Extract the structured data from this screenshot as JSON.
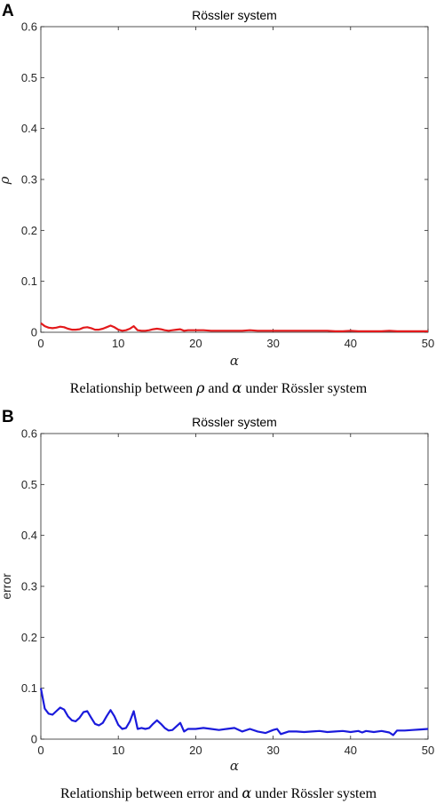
{
  "panels": [
    {
      "label": "A",
      "caption": {
        "pre": "Relationship between ",
        "symbol": "ρ",
        "mid": " and ",
        "symbol2": "α",
        "post": " under Rössler system"
      }
    },
    {
      "label": "B",
      "caption": {
        "pre": "Relationship between error and ",
        "symbol": "α",
        "post": " under Rössler system"
      }
    }
  ],
  "chart_data": [
    {
      "type": "line",
      "title": "Rössler system",
      "xlabel": "α",
      "ylabel": "ρ",
      "xlim": [
        0,
        50
      ],
      "ylim": [
        0,
        0.6
      ],
      "xticks": [
        "0",
        "10",
        "20",
        "30",
        "40",
        "50"
      ],
      "yticks": [
        "0",
        "0.1",
        "0.2",
        "0.3",
        "0.4",
        "0.5",
        "0.6"
      ],
      "grid": false,
      "series": [
        {
          "color": "#e31a1c",
          "x": [
            0,
            0.5,
            1,
            1.5,
            2,
            2.5,
            3,
            3.5,
            4,
            4.5,
            5,
            5.5,
            6,
            6.5,
            7,
            7.5,
            8,
            8.5,
            9,
            9.5,
            10,
            10.5,
            11,
            11.5,
            12,
            12.5,
            13,
            13.5,
            14,
            14.5,
            15,
            15.5,
            16,
            16.5,
            17,
            17.5,
            18,
            18.5,
            19,
            20,
            21,
            22,
            23,
            24,
            25,
            26,
            27,
            28,
            29,
            30,
            31,
            32,
            33,
            34,
            35,
            36,
            37,
            38,
            39,
            40,
            41,
            42,
            43,
            44,
            45,
            46,
            47,
            48,
            49,
            50
          ],
          "y": [
            0.018,
            0.012,
            0.009,
            0.008,
            0.009,
            0.011,
            0.01,
            0.007,
            0.005,
            0.005,
            0.006,
            0.009,
            0.01,
            0.008,
            0.005,
            0.005,
            0.007,
            0.01,
            0.013,
            0.01,
            0.005,
            0.003,
            0.004,
            0.007,
            0.012,
            0.004,
            0.003,
            0.003,
            0.004,
            0.006,
            0.007,
            0.006,
            0.004,
            0.003,
            0.004,
            0.005,
            0.006,
            0.003,
            0.004,
            0.004,
            0.004,
            0.003,
            0.003,
            0.003,
            0.003,
            0.003,
            0.004,
            0.003,
            0.003,
            0.003,
            0.003,
            0.003,
            0.003,
            0.003,
            0.003,
            0.003,
            0.003,
            0.002,
            0.002,
            0.003,
            0.002,
            0.002,
            0.002,
            0.002,
            0.003,
            0.002,
            0.002,
            0.002,
            0.002,
            0.002
          ]
        }
      ]
    },
    {
      "type": "line",
      "title": "Rössler system",
      "xlabel": "α",
      "ylabel": "error",
      "xlim": [
        0,
        50
      ],
      "ylim": [
        0,
        0.6
      ],
      "xticks": [
        "0",
        "10",
        "20",
        "30",
        "40",
        "50"
      ],
      "yticks": [
        "0",
        "0.1",
        "0.2",
        "0.3",
        "0.4",
        "0.5",
        "0.6"
      ],
      "grid": false,
      "series": [
        {
          "color": "#1a1adc",
          "x": [
            0,
            0.5,
            1,
            1.5,
            2,
            2.5,
            3,
            3.5,
            4,
            4.5,
            5,
            5.5,
            6,
            6.5,
            7,
            7.5,
            8,
            8.5,
            9,
            9.5,
            10,
            10.5,
            11,
            11.5,
            12,
            12.5,
            13,
            13.5,
            14,
            14.5,
            15,
            15.5,
            16,
            16.5,
            17,
            17.5,
            18,
            18.5,
            19,
            20,
            21,
            22,
            23,
            24,
            25,
            26,
            27,
            28,
            29,
            30,
            30.5,
            31,
            32,
            33,
            34,
            35,
            36,
            37,
            38,
            39,
            40,
            41,
            41.5,
            42,
            43,
            44,
            45,
            45.5,
            46,
            47,
            48,
            49,
            50
          ],
          "y": [
            0.1,
            0.06,
            0.05,
            0.048,
            0.055,
            0.062,
            0.058,
            0.045,
            0.037,
            0.035,
            0.042,
            0.053,
            0.055,
            0.042,
            0.03,
            0.027,
            0.032,
            0.045,
            0.057,
            0.045,
            0.028,
            0.02,
            0.022,
            0.035,
            0.055,
            0.02,
            0.022,
            0.02,
            0.022,
            0.03,
            0.037,
            0.03,
            0.022,
            0.017,
            0.018,
            0.025,
            0.032,
            0.015,
            0.02,
            0.02,
            0.022,
            0.02,
            0.018,
            0.02,
            0.022,
            0.015,
            0.02,
            0.015,
            0.012,
            0.018,
            0.02,
            0.01,
            0.015,
            0.015,
            0.014,
            0.015,
            0.016,
            0.014,
            0.015,
            0.016,
            0.014,
            0.016,
            0.013,
            0.016,
            0.014,
            0.016,
            0.013,
            0.008,
            0.017,
            0.017,
            0.018,
            0.019,
            0.02
          ]
        }
      ]
    }
  ]
}
